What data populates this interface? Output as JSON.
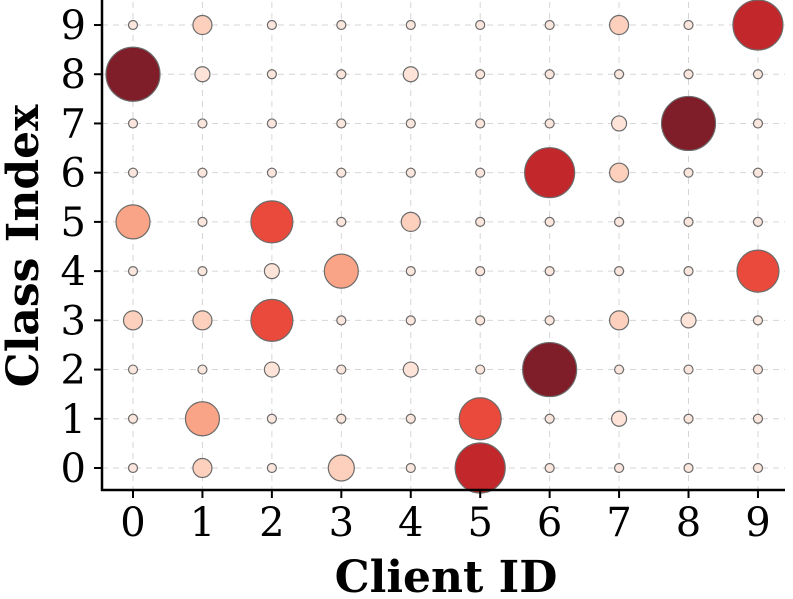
{
  "chart_data": {
    "type": "scatter",
    "title": "",
    "xlabel": "Client ID",
    "ylabel": "Class Index",
    "x_ticks": [
      "0",
      "1",
      "2",
      "3",
      "4",
      "5",
      "6",
      "7",
      "8",
      "9"
    ],
    "y_ticks": [
      "0",
      "1",
      "2",
      "3",
      "4",
      "5",
      "6",
      "7",
      "8",
      "9"
    ],
    "xlim": [
      -0.45,
      9.45
    ],
    "ylim": [
      -0.45,
      9.45
    ],
    "grid": true,
    "encoding": "bubble size and color represent sample count (light beige to dark red)",
    "colors": {
      "very_small": "#fde3d8",
      "small": "#fcd0bd",
      "medium": "#f9a486",
      "large": "#ea4a3b",
      "very_large": "#c2272b",
      "max": "#7f1d28",
      "bubble_edge": "#6b6b6b"
    },
    "points": [
      {
        "x": 0,
        "y": 0,
        "size": "tiny"
      },
      {
        "x": 0,
        "y": 1,
        "size": "tiny"
      },
      {
        "x": 0,
        "y": 2,
        "size": "tiny"
      },
      {
        "x": 0,
        "y": 3,
        "size": "small"
      },
      {
        "x": 0,
        "y": 4,
        "size": "tiny"
      },
      {
        "x": 0,
        "y": 5,
        "size": "medium"
      },
      {
        "x": 0,
        "y": 6,
        "size": "tiny"
      },
      {
        "x": 0,
        "y": 7,
        "size": "tiny"
      },
      {
        "x": 0,
        "y": 8,
        "size": "max"
      },
      {
        "x": 0,
        "y": 9,
        "size": "tiny"
      },
      {
        "x": 1,
        "y": 0,
        "size": "small"
      },
      {
        "x": 1,
        "y": 1,
        "size": "medium"
      },
      {
        "x": 1,
        "y": 2,
        "size": "tiny"
      },
      {
        "x": 1,
        "y": 3,
        "size": "small"
      },
      {
        "x": 1,
        "y": 4,
        "size": "tiny"
      },
      {
        "x": 1,
        "y": 5,
        "size": "tiny"
      },
      {
        "x": 1,
        "y": 6,
        "size": "tiny"
      },
      {
        "x": 1,
        "y": 7,
        "size": "tiny"
      },
      {
        "x": 1,
        "y": 8,
        "size": "very_small"
      },
      {
        "x": 1,
        "y": 9,
        "size": "small"
      },
      {
        "x": 2,
        "y": 0,
        "size": "tiny"
      },
      {
        "x": 2,
        "y": 1,
        "size": "tiny"
      },
      {
        "x": 2,
        "y": 2,
        "size": "very_small"
      },
      {
        "x": 2,
        "y": 3,
        "size": "large"
      },
      {
        "x": 2,
        "y": 4,
        "size": "very_small"
      },
      {
        "x": 2,
        "y": 5,
        "size": "large"
      },
      {
        "x": 2,
        "y": 6,
        "size": "tiny"
      },
      {
        "x": 2,
        "y": 7,
        "size": "tiny"
      },
      {
        "x": 2,
        "y": 8,
        "size": "tiny"
      },
      {
        "x": 2,
        "y": 9,
        "size": "tiny"
      },
      {
        "x": 3,
        "y": 0,
        "size": "medium_small"
      },
      {
        "x": 3,
        "y": 1,
        "size": "tiny"
      },
      {
        "x": 3,
        "y": 2,
        "size": "tiny"
      },
      {
        "x": 3,
        "y": 3,
        "size": "tiny"
      },
      {
        "x": 3,
        "y": 4,
        "size": "medium"
      },
      {
        "x": 3,
        "y": 5,
        "size": "tiny"
      },
      {
        "x": 3,
        "y": 6,
        "size": "tiny"
      },
      {
        "x": 3,
        "y": 7,
        "size": "tiny"
      },
      {
        "x": 3,
        "y": 8,
        "size": "tiny"
      },
      {
        "x": 3,
        "y": 9,
        "size": "tiny"
      },
      {
        "x": 4,
        "y": 0,
        "size": "tiny"
      },
      {
        "x": 4,
        "y": 1,
        "size": "tiny"
      },
      {
        "x": 4,
        "y": 2,
        "size": "very_small"
      },
      {
        "x": 4,
        "y": 3,
        "size": "tiny"
      },
      {
        "x": 4,
        "y": 4,
        "size": "tiny"
      },
      {
        "x": 4,
        "y": 5,
        "size": "small"
      },
      {
        "x": 4,
        "y": 6,
        "size": "tiny"
      },
      {
        "x": 4,
        "y": 7,
        "size": "tiny"
      },
      {
        "x": 4,
        "y": 8,
        "size": "very_small"
      },
      {
        "x": 4,
        "y": 9,
        "size": "tiny"
      },
      {
        "x": 5,
        "y": 0,
        "size": "very_large"
      },
      {
        "x": 5,
        "y": 1,
        "size": "large"
      },
      {
        "x": 5,
        "y": 2,
        "size": "tiny"
      },
      {
        "x": 5,
        "y": 3,
        "size": "tiny"
      },
      {
        "x": 5,
        "y": 4,
        "size": "tiny"
      },
      {
        "x": 5,
        "y": 5,
        "size": "tiny"
      },
      {
        "x": 5,
        "y": 6,
        "size": "tiny"
      },
      {
        "x": 5,
        "y": 7,
        "size": "tiny"
      },
      {
        "x": 5,
        "y": 8,
        "size": "tiny"
      },
      {
        "x": 5,
        "y": 9,
        "size": "tiny"
      },
      {
        "x": 6,
        "y": 0,
        "size": "tiny"
      },
      {
        "x": 6,
        "y": 1,
        "size": "tiny"
      },
      {
        "x": 6,
        "y": 2,
        "size": "max"
      },
      {
        "x": 6,
        "y": 3,
        "size": "tiny"
      },
      {
        "x": 6,
        "y": 4,
        "size": "tiny"
      },
      {
        "x": 6,
        "y": 5,
        "size": "tiny"
      },
      {
        "x": 6,
        "y": 6,
        "size": "very_large"
      },
      {
        "x": 6,
        "y": 7,
        "size": "tiny"
      },
      {
        "x": 6,
        "y": 8,
        "size": "tiny"
      },
      {
        "x": 6,
        "y": 9,
        "size": "tiny"
      },
      {
        "x": 7,
        "y": 0,
        "size": "tiny"
      },
      {
        "x": 7,
        "y": 1,
        "size": "very_small"
      },
      {
        "x": 7,
        "y": 2,
        "size": "tiny"
      },
      {
        "x": 7,
        "y": 3,
        "size": "small"
      },
      {
        "x": 7,
        "y": 4,
        "size": "tiny"
      },
      {
        "x": 7,
        "y": 5,
        "size": "tiny"
      },
      {
        "x": 7,
        "y": 6,
        "size": "small"
      },
      {
        "x": 7,
        "y": 7,
        "size": "very_small"
      },
      {
        "x": 7,
        "y": 8,
        "size": "tiny"
      },
      {
        "x": 7,
        "y": 9,
        "size": "small"
      },
      {
        "x": 8,
        "y": 0,
        "size": "tiny"
      },
      {
        "x": 8,
        "y": 1,
        "size": "tiny"
      },
      {
        "x": 8,
        "y": 2,
        "size": "tiny"
      },
      {
        "x": 8,
        "y": 3,
        "size": "very_small"
      },
      {
        "x": 8,
        "y": 4,
        "size": "tiny"
      },
      {
        "x": 8,
        "y": 5,
        "size": "tiny"
      },
      {
        "x": 8,
        "y": 6,
        "size": "tiny"
      },
      {
        "x": 8,
        "y": 7,
        "size": "max"
      },
      {
        "x": 8,
        "y": 8,
        "size": "tiny"
      },
      {
        "x": 8,
        "y": 9,
        "size": "tiny"
      },
      {
        "x": 9,
        "y": 0,
        "size": "tiny"
      },
      {
        "x": 9,
        "y": 1,
        "size": "tiny"
      },
      {
        "x": 9,
        "y": 2,
        "size": "tiny"
      },
      {
        "x": 9,
        "y": 3,
        "size": "tiny"
      },
      {
        "x": 9,
        "y": 4,
        "size": "large"
      },
      {
        "x": 9,
        "y": 5,
        "size": "tiny"
      },
      {
        "x": 9,
        "y": 6,
        "size": "tiny"
      },
      {
        "x": 9,
        "y": 7,
        "size": "tiny"
      },
      {
        "x": 9,
        "y": 8,
        "size": "tiny"
      },
      {
        "x": 9,
        "y": 9,
        "size": "very_large"
      }
    ]
  }
}
